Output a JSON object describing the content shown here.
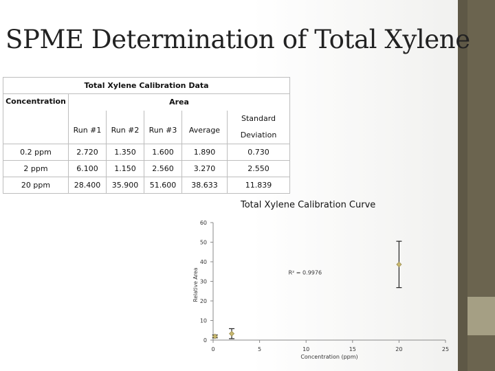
{
  "slide": {
    "title": "SPME Determination of Total Xylene"
  },
  "table": {
    "title": "Total Xylene Calibration Data",
    "group_header": "Area",
    "concentration_header": "Concentration",
    "columns": [
      "Run #1",
      "Run #2",
      "Run #3",
      "Average"
    ],
    "std_header_line1": "Standard",
    "std_header_line2": "Deviation",
    "rows": [
      {
        "conc": "0.2 ppm",
        "run1": "2.720",
        "run2": "1.350",
        "run3": "1.600",
        "avg": "1.890",
        "sd": "0.730"
      },
      {
        "conc": "2 ppm",
        "run1": "6.100",
        "run2": "1.150",
        "run3": "2.560",
        "avg": "3.270",
        "sd": "2.550"
      },
      {
        "conc": "20 ppm",
        "run1": "28.400",
        "run2": "35.900",
        "run3": "51.600",
        "avg": "38.633",
        "sd": "11.839"
      }
    ]
  },
  "chart_data": {
    "type": "scatter",
    "title": "Total Xylene Calibration Curve",
    "xlabel": "Concentration (ppm)",
    "ylabel": "Relative Area",
    "xlim": [
      0,
      25
    ],
    "ylim": [
      0,
      60
    ],
    "xticks": [
      "0",
      "5",
      "10",
      "15",
      "20",
      "25"
    ],
    "yticks": [
      "0",
      "10",
      "20",
      "30",
      "40",
      "50",
      "60"
    ],
    "annotation": "R² = 0.9976",
    "grid": false,
    "series": [
      {
        "x": [
          0.2,
          2,
          20
        ],
        "y": [
          1.89,
          3.27,
          38.633
        ],
        "error": [
          0.73,
          2.55,
          11.839
        ]
      }
    ],
    "marker_color": "#c8b870"
  }
}
